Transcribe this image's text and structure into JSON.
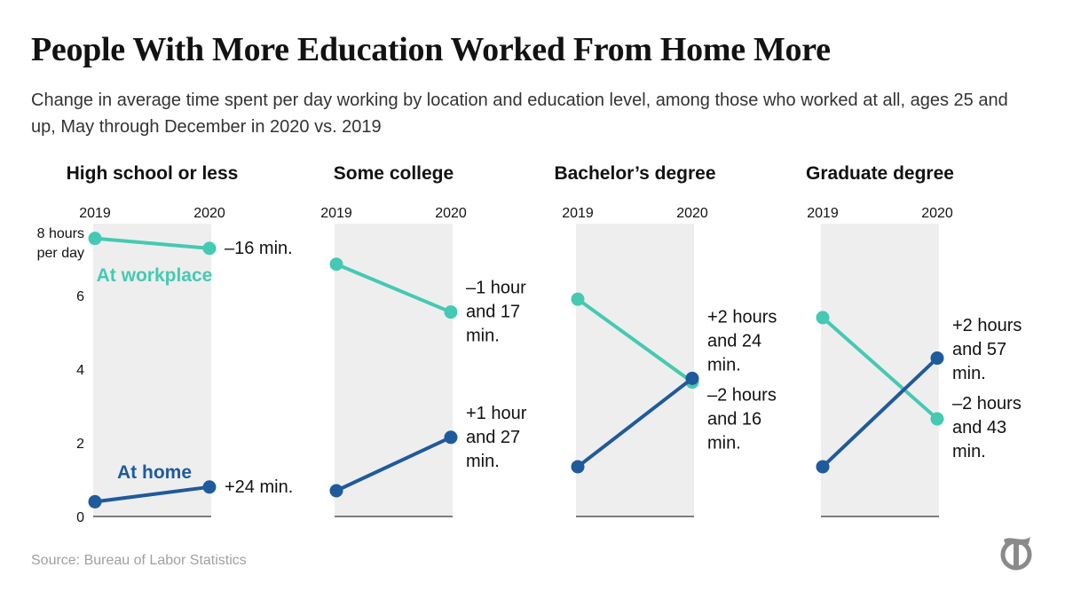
{
  "title": "People With More Education Worked From Home More",
  "subtitle": "Change in average time spent per day working by location and education level, among those who worked at all, ages 25 and up, May through December in 2020 vs. 2019",
  "source": "Source: Bureau of Labor Statistics",
  "logo": {
    "icon": "nyt-t-logo-icon"
  },
  "colors": {
    "workplace": "#45c9b2",
    "home": "#1f5a9c",
    "panel_bg": "#eeeeee",
    "axis": "#555555",
    "text": "#121212"
  },
  "chart_data": {
    "type": "line",
    "x": [
      "2019",
      "2020"
    ],
    "ylim": [
      0,
      8
    ],
    "yticks": [
      0,
      2,
      4,
      6
    ],
    "top_tick_label": [
      "8 hours",
      "per day"
    ],
    "series_labels": {
      "workplace": "At workplace",
      "home": "At home"
    },
    "panels": [
      {
        "name": "High school or less",
        "workplace": {
          "values": [
            7.55,
            7.28
          ],
          "change": [
            "–16 min."
          ]
        },
        "home": {
          "values": [
            0.4,
            0.8
          ],
          "change": [
            "+24 min."
          ]
        }
      },
      {
        "name": "Some college",
        "workplace": {
          "values": [
            6.85,
            5.55
          ],
          "change": [
            "–1 hour",
            "and 17",
            "min."
          ]
        },
        "home": {
          "values": [
            0.7,
            2.15
          ],
          "change": [
            "+1 hour",
            "and 27",
            "min."
          ]
        }
      },
      {
        "name": "Bachelor’s degree",
        "workplace": {
          "values": [
            5.9,
            3.65
          ],
          "change": [
            "–2 hours",
            "and 16",
            "min."
          ]
        },
        "home": {
          "values": [
            1.35,
            3.75
          ],
          "change": [
            "+2 hours",
            "and 24",
            "min."
          ]
        }
      },
      {
        "name": "Graduate degree",
        "workplace": {
          "values": [
            5.4,
            2.65
          ],
          "change": [
            "–2 hours",
            "and 43",
            "min."
          ]
        },
        "home": {
          "values": [
            1.35,
            4.3
          ],
          "change": [
            "+2 hours",
            "and 57",
            "min."
          ]
        }
      }
    ]
  }
}
